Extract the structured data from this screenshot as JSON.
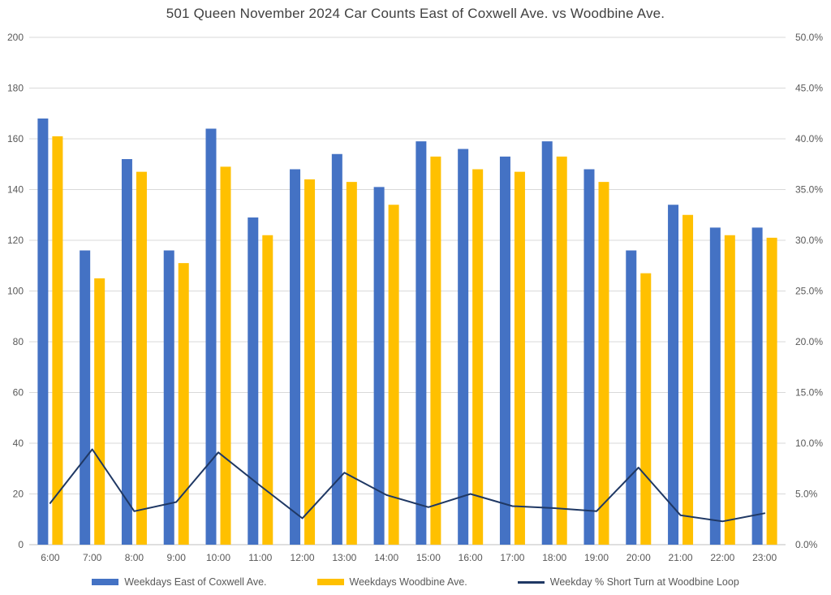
{
  "title": "501 Queen November 2024 Car Counts East of Coxwell Ave. vs Woodbine Ave.",
  "colors": {
    "east_coxwell_bar": "#4472C4",
    "woodbine_bar": "#FFC000",
    "short_turn_line": "#1F3864",
    "gridline": "#D9D9D9",
    "baseline": "#BFBFBF",
    "axis_text": "#595959",
    "title_text": "#404040"
  },
  "chart_data": {
    "type": "bar",
    "subtype": "grouped-bars-with-line-combo",
    "title": "501 Queen November 2024 Car Counts East of Coxwell Ave. vs Woodbine Ave.",
    "categories": [
      "6:00",
      "7:00",
      "8:00",
      "9:00",
      "10:00",
      "11:00",
      "12:00",
      "13:00",
      "14:00",
      "15:00",
      "16:00",
      "17:00",
      "18:00",
      "19:00",
      "20:00",
      "21:00",
      "22:00",
      "23:00"
    ],
    "series": [
      {
        "name": "Weekdays East of Coxwell Ave.",
        "type": "bar",
        "axis": "left",
        "color_key": "east_coxwell_bar",
        "values": [
          168,
          116,
          152,
          116,
          164,
          129,
          148,
          154,
          141,
          159,
          156,
          153,
          159,
          148,
          116,
          134,
          125,
          125
        ]
      },
      {
        "name": "Weekdays Woodbine Ave.",
        "type": "bar",
        "axis": "left",
        "color_key": "woodbine_bar",
        "values": [
          161,
          105,
          147,
          111,
          149,
          122,
          144,
          143,
          134,
          153,
          148,
          147,
          153,
          143,
          107,
          130,
          122,
          121
        ]
      },
      {
        "name": "Weekday % Short Turn at Woodbine Loop",
        "type": "line",
        "axis": "right",
        "color_key": "short_turn_line",
        "values_pct": [
          4.1,
          9.4,
          3.3,
          4.2,
          9.1,
          5.8,
          2.6,
          7.1,
          4.9,
          3.7,
          5.0,
          3.8,
          3.6,
          3.3,
          7.6,
          2.9,
          2.3,
          3.1
        ]
      }
    ],
    "left_axis": {
      "min": 0,
      "max": 200,
      "step": 20,
      "tick_labels_top_to_bottom": [
        "200",
        "180",
        "160",
        "140",
        "120",
        "100",
        "80",
        "60",
        "40",
        "20",
        "0"
      ]
    },
    "right_axis": {
      "min": 0,
      "max": 50,
      "step": 5,
      "tick_labels_top_to_bottom": [
        "50.0%",
        "45.0%",
        "40.0%",
        "35.0%",
        "30.0%",
        "25.0%",
        "20.0%",
        "15.0%",
        "10.0%",
        "5.0%",
        "0.0%"
      ]
    },
    "grid": true,
    "legend_position": "bottom"
  }
}
